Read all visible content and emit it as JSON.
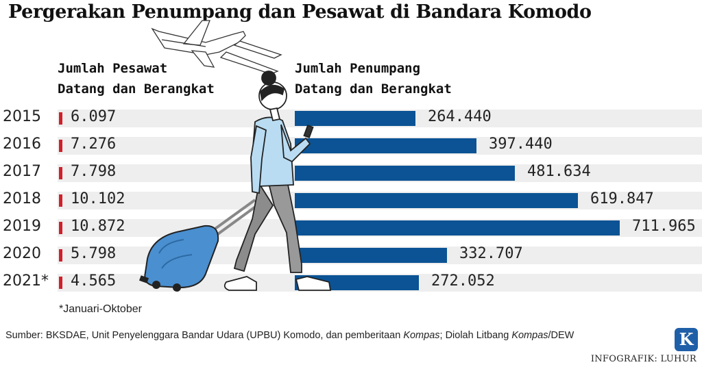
{
  "title": "Pergerakan Penumpang dan Pesawat di Bandara Komodo",
  "headers": {
    "left_line1": "Jumlah Pesawat",
    "left_line2": "Datang dan Berangkat",
    "right_line1": "Jumlah Penumpang",
    "right_line2": "Datang dan Berangkat"
  },
  "chart_data": {
    "type": "bar",
    "categories": [
      "2015",
      "2016",
      "2017",
      "2018",
      "2019",
      "2020",
      "2021*"
    ],
    "series": [
      {
        "name": "Jumlah Pesawat Datang dan Berangkat",
        "values": [
          6097,
          7276,
          7798,
          10102,
          10872,
          5798,
          4565
        ],
        "labels": [
          "6.097",
          "7.276",
          "7.798",
          "10.102",
          "10.872",
          "5.798",
          "4.565"
        ]
      },
      {
        "name": "Jumlah Penumpang Datang dan Berangkat",
        "values": [
          264440,
          397440,
          481634,
          619847,
          711965,
          332707,
          272052
        ],
        "labels": [
          "264.440",
          "397.440",
          "481.634",
          "619.847",
          "711.965",
          "332.707",
          "272.052"
        ]
      }
    ],
    "colors": {
      "pesawat": "#d0202a",
      "penumpang": "#0b5394",
      "band": "#eeeeee"
    }
  },
  "footnote": "*Januari-Oktober",
  "source": {
    "prefix": "Sumber: BKSDAE, Unit Penyelenggara Bandar Udara (UPBU) Komodo, dan pemberitaan ",
    "italic1": "Kompas",
    "middle": "; Diolah Litbang ",
    "italic2": "Kompas",
    "suffix": "/DEW"
  },
  "credit": "INFOGRAFIK: LUHUR",
  "logo": "K"
}
